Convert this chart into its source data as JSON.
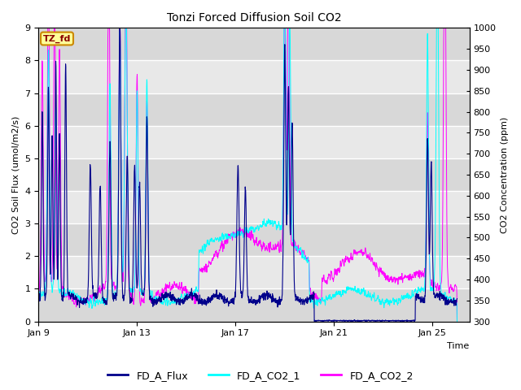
{
  "title": "Tonzi Forced Diffusion Soil CO2",
  "xlabel": "Time",
  "ylabel_left": "CO2 Soil Flux (umol/m2/s)",
  "ylabel_right": "CO2 Concentration (ppm)",
  "ylim_left": [
    0.0,
    9.0
  ],
  "ylim_right": [
    300,
    1000
  ],
  "yticks_left": [
    0.0,
    1.0,
    2.0,
    3.0,
    4.0,
    5.0,
    6.0,
    7.0,
    8.0,
    9.0
  ],
  "yticks_right": [
    300,
    350,
    400,
    450,
    500,
    550,
    600,
    650,
    700,
    750,
    800,
    850,
    900,
    950,
    1000
  ],
  "xtick_labels": [
    "Jan 9",
    "Jan 13",
    "Jan 17",
    "Jan 21",
    "Jan 25"
  ],
  "xtick_positions": [
    0,
    4,
    8,
    12,
    16
  ],
  "xlim": [
    0,
    17.5
  ],
  "colors": {
    "FD_A_Flux": "#00008B",
    "FD_A_CO2_1": "#00FFFF",
    "FD_A_CO2_2": "#FF00FF"
  },
  "legend_label": "TZ_fd",
  "legend_box_color": "#FFFF99",
  "legend_box_edge": "#CC8800",
  "background_color": "#E0E0E0",
  "grid_color": "#FFFFFF",
  "n_points": 2000
}
